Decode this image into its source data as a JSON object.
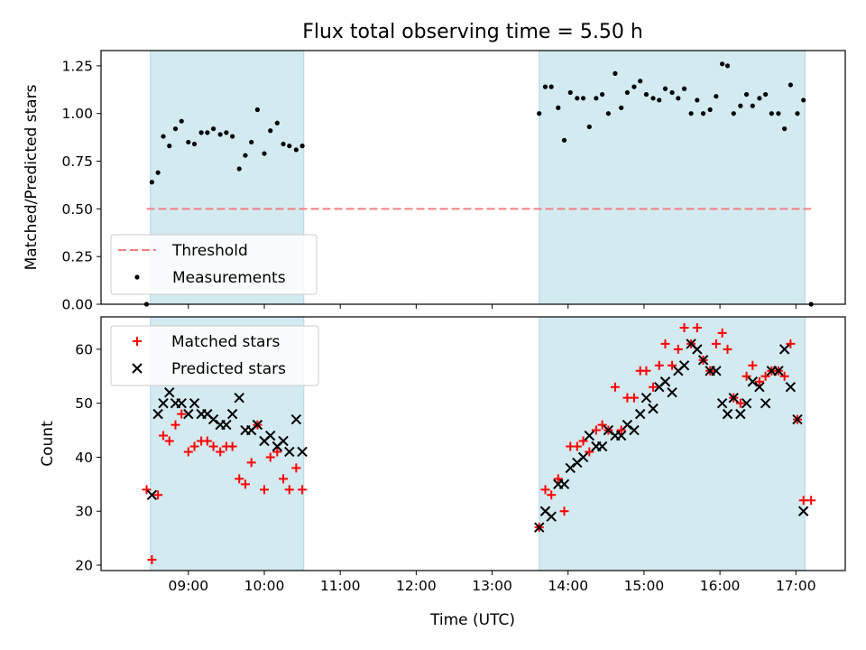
{
  "chart_data": {
    "title": "Flux total observing time = 5.50 h",
    "xlabel": "Time (UTC)",
    "xlim_hours": [
      7.85,
      17.65
    ],
    "x_ticks": [
      "09:00",
      "10:00",
      "11:00",
      "12:00",
      "13:00",
      "14:00",
      "15:00",
      "16:00",
      "17:00"
    ],
    "x_tick_hours": [
      9,
      10,
      11,
      12,
      13,
      14,
      15,
      16,
      17
    ],
    "shaded_intervals_hours": [
      [
        8.5,
        10.52
      ],
      [
        13.62,
        17.12
      ]
    ],
    "shade_color": "#d3eaf0",
    "panels": [
      {
        "type": "scatter",
        "ylabel": "Matched/Predicted stars",
        "ylim": [
          0,
          1.33
        ],
        "y_ticks": [
          0.0,
          0.25,
          0.5,
          0.75,
          1.0,
          1.25
        ],
        "y_tick_labels": [
          "0.00",
          "0.25",
          "0.50",
          "0.75",
          "1.00",
          "1.25"
        ],
        "legend_position": "lower-left",
        "threshold": {
          "name": "Threshold",
          "value": 0.5,
          "x_range": [
            8.45,
            17.2
          ],
          "color": "#f08080"
        },
        "measurements": {
          "name": "Measurements",
          "color": "#000000",
          "points": [
            [
              8.45,
              0.0
            ],
            [
              8.52,
              0.64
            ],
            [
              8.6,
              0.69
            ],
            [
              8.67,
              0.88
            ],
            [
              8.75,
              0.83
            ],
            [
              8.83,
              0.92
            ],
            [
              8.91,
              0.96
            ],
            [
              9.0,
              0.85
            ],
            [
              9.08,
              0.84
            ],
            [
              9.17,
              0.9
            ],
            [
              9.25,
              0.9
            ],
            [
              9.33,
              0.92
            ],
            [
              9.42,
              0.89
            ],
            [
              9.5,
              0.9
            ],
            [
              9.58,
              0.88
            ],
            [
              9.67,
              0.71
            ],
            [
              9.75,
              0.78
            ],
            [
              9.83,
              0.85
            ],
            [
              9.91,
              1.02
            ],
            [
              10.0,
              0.79
            ],
            [
              10.08,
              0.91
            ],
            [
              10.17,
              0.95
            ],
            [
              10.25,
              0.84
            ],
            [
              10.33,
              0.83
            ],
            [
              10.42,
              0.81
            ],
            [
              10.5,
              0.83
            ],
            [
              13.62,
              1.0
            ],
            [
              13.7,
              1.14
            ],
            [
              13.78,
              1.14
            ],
            [
              13.87,
              1.03
            ],
            [
              13.95,
              0.86
            ],
            [
              14.03,
              1.11
            ],
            [
              14.12,
              1.08
            ],
            [
              14.2,
              1.08
            ],
            [
              14.28,
              0.93
            ],
            [
              14.37,
              1.08
            ],
            [
              14.45,
              1.1
            ],
            [
              14.53,
              1.0
            ],
            [
              14.62,
              1.21
            ],
            [
              14.7,
              1.03
            ],
            [
              14.78,
              1.11
            ],
            [
              14.87,
              1.14
            ],
            [
              14.95,
              1.17
            ],
            [
              15.03,
              1.1
            ],
            [
              15.12,
              1.08
            ],
            [
              15.2,
              1.07
            ],
            [
              15.28,
              1.13
            ],
            [
              15.37,
              1.11
            ],
            [
              15.45,
              1.08
            ],
            [
              15.53,
              1.13
            ],
            [
              15.62,
              1.0
            ],
            [
              15.7,
              1.07
            ],
            [
              15.78,
              1.0
            ],
            [
              15.87,
              1.02
            ],
            [
              15.95,
              1.09
            ],
            [
              16.03,
              1.26
            ],
            [
              16.1,
              1.25
            ],
            [
              16.18,
              1.0
            ],
            [
              16.27,
              1.04
            ],
            [
              16.35,
              1.1
            ],
            [
              16.43,
              1.04
            ],
            [
              16.52,
              1.08
            ],
            [
              16.6,
              1.1
            ],
            [
              16.68,
              1.0
            ],
            [
              16.77,
              1.0
            ],
            [
              16.85,
              0.92
            ],
            [
              16.93,
              1.15
            ],
            [
              17.02,
              1.0
            ],
            [
              17.1,
              1.07
            ],
            [
              17.2,
              0.0
            ]
          ]
        }
      },
      {
        "type": "scatter",
        "ylabel": "Count",
        "ylim": [
          19,
          66
        ],
        "y_ticks": [
          20,
          30,
          40,
          50,
          60
        ],
        "y_tick_labels": [
          "20",
          "30",
          "40",
          "50",
          "60"
        ],
        "legend_position": "upper-left",
        "series": [
          {
            "name": "Matched stars",
            "marker": "plus",
            "color": "#ff0000",
            "points": [
              [
                8.45,
                34
              ],
              [
                8.52,
                21
              ],
              [
                8.6,
                33
              ],
              [
                8.67,
                44
              ],
              [
                8.75,
                43
              ],
              [
                8.83,
                46
              ],
              [
                8.91,
                48
              ],
              [
                9.0,
                41
              ],
              [
                9.08,
                42
              ],
              [
                9.17,
                43
              ],
              [
                9.25,
                43
              ],
              [
                9.33,
                42
              ],
              [
                9.42,
                41
              ],
              [
                9.5,
                42
              ],
              [
                9.58,
                42
              ],
              [
                9.67,
                36
              ],
              [
                9.75,
                35
              ],
              [
                9.83,
                39
              ],
              [
                9.91,
                46
              ],
              [
                10.0,
                34
              ],
              [
                10.08,
                40
              ],
              [
                10.17,
                41
              ],
              [
                10.25,
                36
              ],
              [
                10.33,
                34
              ],
              [
                10.42,
                38
              ],
              [
                10.5,
                34
              ],
              [
                13.62,
                27
              ],
              [
                13.7,
                34
              ],
              [
                13.78,
                33
              ],
              [
                13.87,
                36
              ],
              [
                13.95,
                30
              ],
              [
                14.03,
                42
              ],
              [
                14.12,
                42
              ],
              [
                14.2,
                43
              ],
              [
                14.28,
                41
              ],
              [
                14.37,
                45
              ],
              [
                14.45,
                46
              ],
              [
                14.53,
                45
              ],
              [
                14.62,
                53
              ],
              [
                14.7,
                45
              ],
              [
                14.78,
                51
              ],
              [
                14.87,
                51
              ],
              [
                14.95,
                56
              ],
              [
                15.03,
                56
              ],
              [
                15.12,
                53
              ],
              [
                15.2,
                57
              ],
              [
                15.28,
                61
              ],
              [
                15.37,
                57
              ],
              [
                15.45,
                60
              ],
              [
                15.53,
                64
              ],
              [
                15.62,
                61
              ],
              [
                15.7,
                64
              ],
              [
                15.78,
                58
              ],
              [
                15.87,
                56
              ],
              [
                15.95,
                61
              ],
              [
                16.03,
                63
              ],
              [
                16.1,
                60
              ],
              [
                16.18,
                51
              ],
              [
                16.27,
                50
              ],
              [
                16.35,
                55
              ],
              [
                16.43,
                57
              ],
              [
                16.52,
                54
              ],
              [
                16.6,
                55
              ],
              [
                16.68,
                56
              ],
              [
                16.77,
                56
              ],
              [
                16.85,
                55
              ],
              [
                16.93,
                61
              ],
              [
                17.02,
                47
              ],
              [
                17.1,
                32
              ],
              [
                17.2,
                32
              ]
            ]
          },
          {
            "name": "Predicted stars",
            "marker": "x",
            "color": "#000000",
            "points": [
              [
                8.52,
                33
              ],
              [
                8.6,
                48
              ],
              [
                8.67,
                50
              ],
              [
                8.75,
                52
              ],
              [
                8.83,
                50
              ],
              [
                8.91,
                50
              ],
              [
                9.0,
                48
              ],
              [
                9.08,
                50
              ],
              [
                9.17,
                48
              ],
              [
                9.25,
                48
              ],
              [
                9.33,
                47
              ],
              [
                9.42,
                46
              ],
              [
                9.5,
                46
              ],
              [
                9.58,
                48
              ],
              [
                9.67,
                51
              ],
              [
                9.75,
                45
              ],
              [
                9.83,
                45
              ],
              [
                9.91,
                46
              ],
              [
                10.0,
                43
              ],
              [
                10.08,
                44
              ],
              [
                10.17,
                42
              ],
              [
                10.25,
                43
              ],
              [
                10.33,
                41
              ],
              [
                10.42,
                47
              ],
              [
                10.5,
                41
              ],
              [
                13.62,
                27
              ],
              [
                13.7,
                30
              ],
              [
                13.78,
                29
              ],
              [
                13.87,
                35
              ],
              [
                13.95,
                35
              ],
              [
                14.03,
                38
              ],
              [
                14.12,
                39
              ],
              [
                14.2,
                40
              ],
              [
                14.28,
                44
              ],
              [
                14.37,
                42
              ],
              [
                14.45,
                42
              ],
              [
                14.53,
                45
              ],
              [
                14.62,
                44
              ],
              [
                14.7,
                44
              ],
              [
                14.78,
                46
              ],
              [
                14.87,
                45
              ],
              [
                14.95,
                48
              ],
              [
                15.03,
                51
              ],
              [
                15.12,
                49
              ],
              [
                15.2,
                53
              ],
              [
                15.28,
                54
              ],
              [
                15.37,
                52
              ],
              [
                15.45,
                56
              ],
              [
                15.53,
                57
              ],
              [
                15.62,
                61
              ],
              [
                15.7,
                60
              ],
              [
                15.78,
                58
              ],
              [
                15.87,
                56
              ],
              [
                15.95,
                56
              ],
              [
                16.03,
                50
              ],
              [
                16.1,
                48
              ],
              [
                16.18,
                51
              ],
              [
                16.27,
                48
              ],
              [
                16.35,
                50
              ],
              [
                16.43,
                54
              ],
              [
                16.52,
                53
              ],
              [
                16.6,
                50
              ],
              [
                16.68,
                56
              ],
              [
                16.77,
                56
              ],
              [
                16.85,
                60
              ],
              [
                16.93,
                53
              ],
              [
                17.02,
                47
              ],
              [
                17.1,
                30
              ]
            ]
          }
        ]
      }
    ]
  }
}
